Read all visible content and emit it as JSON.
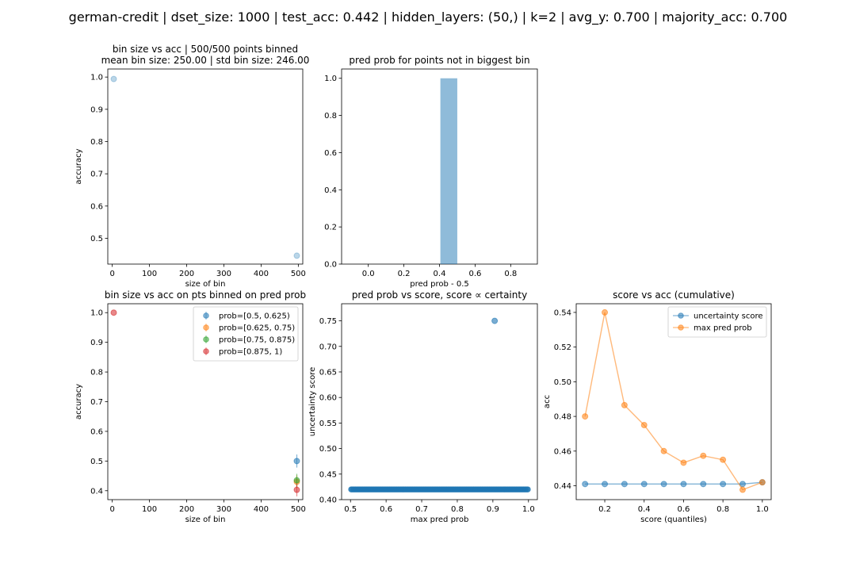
{
  "figure": {
    "suptitle": "german-credit | dset_size: 1000 | test_acc: 0.442 | hidden_layers: (50,) | k=2 | avg_y: 0.700 | majority_acc: 0.700"
  },
  "colors": {
    "blue": "#1f77b4",
    "orange": "#ff7f0e",
    "green": "#2ca02c",
    "red": "#d62728"
  },
  "chart_data": [
    {
      "id": "p1",
      "type": "scatter",
      "title_lines": [
        "bin size vs acc | 500/500 points binned",
        "mean bin size: 250.00 | std bin size: 246.00"
      ],
      "xlabel": "size of bin",
      "ylabel": "accuracy",
      "xlim": [
        -12,
        512
      ],
      "ylim": [
        0.42,
        1.025
      ],
      "xticks": [
        0,
        100,
        200,
        300,
        400,
        500
      ],
      "yticks": [
        0.5,
        0.6,
        0.7,
        0.8,
        0.9,
        1.0
      ],
      "ytick_labels": [
        "0.5",
        "0.6",
        "0.7",
        "0.8",
        "0.9",
        "1.0"
      ],
      "points": [
        {
          "x": 4,
          "y": 0.994
        },
        {
          "x": 496,
          "y": 0.446
        }
      ],
      "color": "#1f77b4",
      "alpha": 0.3
    },
    {
      "id": "p2",
      "type": "bar",
      "title_lines": [
        "pred prob for points not in biggest bin"
      ],
      "xlabel": "pred prob - 0.5",
      "ylabel": "",
      "xlim": [
        -0.15,
        0.95
      ],
      "ylim": [
        0,
        1.05
      ],
      "xticks": [
        0.0,
        0.2,
        0.4,
        0.6,
        0.8
      ],
      "xtick_labels": [
        "0.0",
        "0.2",
        "0.4",
        "0.6",
        "0.8"
      ],
      "yticks": [
        0.0,
        0.2,
        0.4,
        0.6,
        0.8,
        1.0
      ],
      "ytick_labels": [
        "0.0",
        "0.2",
        "0.4",
        "0.6",
        "0.8",
        "1.0"
      ],
      "bars": [
        {
          "x0": 0.405,
          "x1": 0.5,
          "height": 1.0
        }
      ],
      "color": "#1f77b4",
      "alpha": 0.5
    },
    {
      "id": "p3",
      "type": "scatter",
      "title_lines": [
        "bin size vs acc on pts binned on pred prob"
      ],
      "xlabel": "size of bin",
      "ylabel": "accuracy",
      "xlim": [
        -12,
        512
      ],
      "ylim": [
        0.37,
        1.03
      ],
      "xticks": [
        0,
        100,
        200,
        300,
        400,
        500
      ],
      "yticks": [
        0.4,
        0.5,
        0.6,
        0.7,
        0.8,
        0.9,
        1.0
      ],
      "ytick_labels": [
        "0.4",
        "0.5",
        "0.6",
        "0.7",
        "0.8",
        "0.9",
        "1.0"
      ],
      "legend_position": "upper right",
      "series": [
        {
          "name": "prob=[0.5, 0.625)",
          "color": "#1f77b4",
          "points": [
            {
              "x": 496,
              "y": 0.5,
              "err": 0.022
            }
          ]
        },
        {
          "name": "prob=[0.625, 0.75)",
          "color": "#ff7f0e",
          "points": [
            {
              "x": 496,
              "y": 0.43,
              "err": 0.022
            }
          ]
        },
        {
          "name": "prob=[0.75, 0.875)",
          "color": "#2ca02c",
          "points": [
            {
              "x": 496,
              "y": 0.435,
              "err": 0.022
            }
          ]
        },
        {
          "name": "prob=[0.875, 1)",
          "color": "#d62728",
          "points": [
            {
              "x": 4,
              "y": 1.0,
              "err": 0
            },
            {
              "x": 496,
              "y": 0.403,
              "err": 0.022
            }
          ]
        }
      ]
    },
    {
      "id": "p4",
      "type": "scatter",
      "title_lines": [
        "pred prob vs score, score ∝ certainty"
      ],
      "xlabel": "max pred prob",
      "ylabel": "uncertainty score",
      "xlim": [
        0.475,
        1.025
      ],
      "ylim": [
        0.4,
        0.7835
      ],
      "xticks": [
        0.5,
        0.6,
        0.7,
        0.8,
        0.9,
        1.0
      ],
      "xtick_labels": [
        "0.5",
        "0.6",
        "0.7",
        "0.8",
        "0.9",
        "1.0"
      ],
      "yticks": [
        0.4,
        0.45,
        0.5,
        0.55,
        0.6,
        0.65,
        0.7,
        0.75
      ],
      "ytick_labels": [
        "0.40",
        "0.45",
        "0.50",
        "0.55",
        "0.60",
        "0.65",
        "0.70",
        "0.75"
      ],
      "band": {
        "x0": 0.502,
        "x1": 1.0,
        "y": 0.42
      },
      "points": [
        {
          "x": 0.905,
          "y": 0.75
        }
      ],
      "color": "#1f77b4",
      "alpha": 0.6
    },
    {
      "id": "p5",
      "type": "line",
      "title_lines": [
        "score vs acc (cumulative)"
      ],
      "xlabel": "score (quantiles)",
      "ylabel": "acc",
      "xlim": [
        0.055,
        1.045
      ],
      "ylim": [
        0.432,
        0.545
      ],
      "xticks": [
        0.2,
        0.4,
        0.6,
        0.8,
        1.0
      ],
      "xtick_labels": [
        "0.2",
        "0.4",
        "0.6",
        "0.8",
        "1.0"
      ],
      "yticks": [
        0.44,
        0.46,
        0.48,
        0.5,
        0.52,
        0.54
      ],
      "ytick_labels": [
        "0.44",
        "0.46",
        "0.48",
        "0.50",
        "0.52",
        "0.54"
      ],
      "legend_position": "upper right",
      "x": [
        0.1,
        0.2,
        0.3,
        0.4,
        0.5,
        0.6,
        0.7,
        0.8,
        0.9,
        1.0
      ],
      "series": [
        {
          "name": "uncertainty score",
          "color": "#1f77b4",
          "values": [
            0.441,
            0.441,
            0.441,
            0.441,
            0.441,
            0.441,
            0.441,
            0.441,
            0.441,
            0.442
          ]
        },
        {
          "name": "max pred prob",
          "color": "#ff7f0e",
          "values": [
            0.48,
            0.54,
            0.4865,
            0.475,
            0.46,
            0.4533,
            0.4573,
            0.455,
            0.4377,
            0.442
          ]
        }
      ]
    }
  ]
}
